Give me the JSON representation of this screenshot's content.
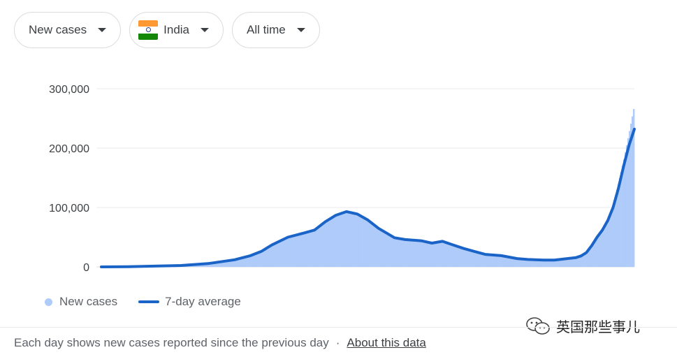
{
  "filters": {
    "metric": "New cases",
    "country": "India",
    "range": "All time"
  },
  "colors": {
    "bar": "#aecbfa",
    "line": "#1a63c7",
    "grid": "#e8eaed",
    "axis_text": "#3c4043"
  },
  "chart_data": {
    "type": "area",
    "title": "",
    "xlabel": "",
    "ylabel": "",
    "ylim": [
      0,
      300000
    ],
    "yticks": [
      "0",
      "100,000",
      "200,000",
      "300,000"
    ],
    "x_range": [
      0,
      1
    ],
    "series": [
      {
        "name": "New cases",
        "style": "bars",
        "x": [
          0.0,
          0.05,
          0.1,
          0.15,
          0.2,
          0.25,
          0.28,
          0.3,
          0.32,
          0.35,
          0.38,
          0.4,
          0.42,
          0.44,
          0.46,
          0.48,
          0.5,
          0.52,
          0.55,
          0.57,
          0.6,
          0.62,
          0.64,
          0.66,
          0.68,
          0.7,
          0.72,
          0.75,
          0.78,
          0.8,
          0.83,
          0.85,
          0.87,
          0.89,
          0.9,
          0.91,
          0.92,
          0.93,
          0.94,
          0.95,
          0.96,
          0.97,
          0.98,
          0.99,
          1.0
        ],
        "values": [
          0,
          500,
          1500,
          2500,
          6000,
          13000,
          20000,
          27000,
          38000,
          52000,
          58000,
          64000,
          77000,
          88000,
          95000,
          90000,
          80000,
          66000,
          50000,
          47000,
          45000,
          41000,
          44000,
          38000,
          32000,
          27000,
          22000,
          20000,
          15000,
          13000,
          12000,
          12000,
          14000,
          16000,
          19000,
          25000,
          38000,
          52000,
          65000,
          82000,
          105000,
          140000,
          180000,
          225000,
          272000
        ]
      },
      {
        "name": "7-day average",
        "style": "line",
        "x": [
          0.0,
          0.05,
          0.1,
          0.15,
          0.2,
          0.25,
          0.28,
          0.3,
          0.32,
          0.35,
          0.38,
          0.4,
          0.42,
          0.44,
          0.46,
          0.48,
          0.5,
          0.52,
          0.55,
          0.57,
          0.6,
          0.62,
          0.64,
          0.66,
          0.68,
          0.7,
          0.72,
          0.75,
          0.78,
          0.8,
          0.83,
          0.85,
          0.87,
          0.89,
          0.9,
          0.91,
          0.92,
          0.93,
          0.94,
          0.95,
          0.96,
          0.97,
          0.98,
          0.99,
          1.0
        ],
        "values": [
          0,
          400,
          1300,
          2300,
          5500,
          12000,
          19000,
          26000,
          37000,
          50000,
          57000,
          62000,
          76000,
          87000,
          93000,
          89000,
          79000,
          65000,
          49000,
          46000,
          44000,
          40000,
          43000,
          37000,
          31000,
          26000,
          21000,
          19000,
          14000,
          12500,
          11500,
          11500,
          13500,
          15500,
          18500,
          24000,
          36000,
          50000,
          62000,
          78000,
          100000,
          132000,
          170000,
          205000,
          232000
        ]
      }
    ],
    "legend": "bottom-left",
    "grid": true
  },
  "legend": {
    "bars_label": "New cases",
    "line_label": "7-day average"
  },
  "footer": {
    "note": "Each day shows new cases reported since the previous day",
    "separator": "·",
    "link": "About this data"
  },
  "watermark": {
    "text": "英国那些事儿"
  }
}
